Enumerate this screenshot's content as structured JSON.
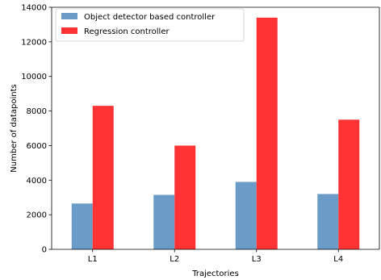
{
  "chart_data": {
    "type": "bar",
    "categories": [
      "L1",
      "L2",
      "L3",
      "L4"
    ],
    "series": [
      {
        "name": "Object detector based controller",
        "values": [
          2650,
          3150,
          3900,
          3200
        ],
        "color": "#6b9cc7"
      },
      {
        "name": "Regression controller",
        "values": [
          8300,
          6000,
          13400,
          7500
        ],
        "color": "#ff3333"
      }
    ],
    "title": "",
    "xlabel": "Trajectories",
    "ylabel": "Number of datapoints",
    "ylim": [
      0,
      14000
    ],
    "yticks": [
      0,
      2000,
      4000,
      6000,
      8000,
      10000,
      12000,
      14000
    ],
    "grid": false,
    "legend_position": "top-left"
  }
}
